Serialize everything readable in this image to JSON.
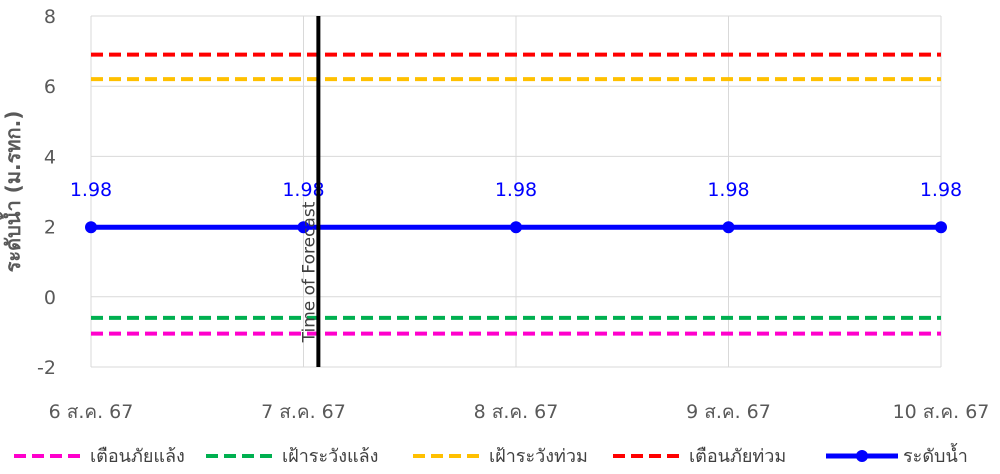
{
  "chart_data": {
    "type": "line",
    "ylabel": "ระดับน้ำ (ม.รทก.)",
    "x_categories": [
      "6 ส.ค. 67",
      "7 ส.ค. 67",
      "8 ส.ค. 67",
      "9 ส.ค. 67",
      "10 ส.ค. 67"
    ],
    "ylim": [
      -2,
      8
    ],
    "yticks": [
      "-2",
      "0",
      "2",
      "4",
      "6",
      "8"
    ],
    "grid": true,
    "legend_position": "bottom",
    "series": [
      {
        "name": "เตือนภัยแล้ง",
        "kind": "threshold",
        "value": -1.05,
        "color": "#ff00cc",
        "dash": true
      },
      {
        "name": "เฝ้าระวังแล้ง",
        "kind": "threshold",
        "value": -0.6,
        "color": "#00b050",
        "dash": true
      },
      {
        "name": "เฝ้าระวังท่วม",
        "kind": "threshold",
        "value": 6.2,
        "color": "#ffc000",
        "dash": true
      },
      {
        "name": "เตือนภัยท่วม",
        "kind": "threshold",
        "value": 6.9,
        "color": "#ff0000",
        "dash": true
      },
      {
        "name": "ระดับน้ำ",
        "kind": "measured",
        "values": [
          1.98,
          1.98,
          1.98,
          1.98,
          1.98
        ],
        "labels": [
          "1.98",
          "1.98",
          "1.98",
          "1.98",
          "1.98"
        ],
        "color": "#0000ff",
        "dash": false
      }
    ],
    "annotation": {
      "text": "Time of Forecast",
      "x_date": "7 ส.ค. 67",
      "x_offset_days": 0.07,
      "color": "#000000"
    }
  }
}
